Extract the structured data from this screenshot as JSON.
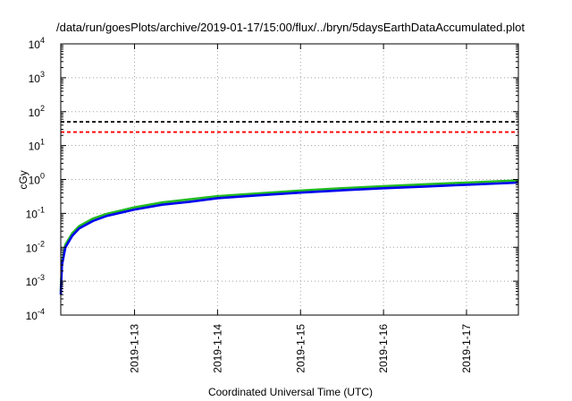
{
  "chart_data": {
    "type": "line",
    "title": "/data/run/goesPlots/archive/2019-01-17/15:00/flux/../bryn/5daysEarthDataAccumulated.plot",
    "xlabel": "Coordinated Universal Time (UTC)",
    "ylabel": "cGy",
    "y_scale": "log",
    "ylim": [
      0.0001,
      10000
    ],
    "xlim": [
      "2019-01-12T02:40",
      "2019-01-17T15:00"
    ],
    "grid": true,
    "x_ticks": [
      {
        "x": "2019-01-13T00:00",
        "label": "2019-1-13"
      },
      {
        "x": "2019-01-14T00:00",
        "label": "2019-1-14"
      },
      {
        "x": "2019-01-15T00:00",
        "label": "2019-1-15"
      },
      {
        "x": "2019-01-16T00:00",
        "label": "2019-1-16"
      },
      {
        "x": "2019-01-17T00:00",
        "label": "2019-1-17"
      }
    ],
    "y_ticks": [
      {
        "value": 0.0001,
        "base": "10",
        "exp": "-4"
      },
      {
        "value": 0.001,
        "base": "10",
        "exp": "-3"
      },
      {
        "value": 0.01,
        "base": "10",
        "exp": "-2"
      },
      {
        "value": 0.1,
        "base": "10",
        "exp": "-1"
      },
      {
        "value": 1,
        "base": "10",
        "exp": "0"
      },
      {
        "value": 10,
        "base": "10",
        "exp": "1"
      },
      {
        "value": 100,
        "base": "10",
        "exp": "2"
      },
      {
        "value": 1000,
        "base": "10",
        "exp": "3"
      },
      {
        "value": 10000,
        "base": "10",
        "exp": "4"
      }
    ],
    "reference_lines": [
      {
        "y": 50,
        "color": "#000000",
        "style": "dashed"
      },
      {
        "y": 25,
        "color": "#ff0000",
        "style": "dashed"
      }
    ],
    "series": [
      {
        "color": "#22bb22",
        "x": [
          "2019-01-12T02:40",
          "2019-01-12T03:00",
          "2019-01-12T04:00",
          "2019-01-12T06:00",
          "2019-01-12T08:00",
          "2019-01-12T12:00",
          "2019-01-12T16:00",
          "2019-01-13T00:00",
          "2019-01-13T08:00",
          "2019-01-13T16:00",
          "2019-01-14T00:00",
          "2019-01-14T12:00",
          "2019-01-15T00:00",
          "2019-01-15T12:00",
          "2019-01-16T00:00",
          "2019-01-16T12:00",
          "2019-01-17T00:00",
          "2019-01-17T15:00"
        ],
        "y": [
          0.0005,
          0.0035,
          0.012,
          0.026,
          0.042,
          0.07,
          0.097,
          0.15,
          0.21,
          0.26,
          0.32,
          0.39,
          0.47,
          0.55,
          0.63,
          0.72,
          0.81,
          0.94
        ]
      },
      {
        "color": "#0000ee",
        "x": [
          "2019-01-12T02:40",
          "2019-01-12T03:00",
          "2019-01-12T04:00",
          "2019-01-12T06:00",
          "2019-01-12T08:00",
          "2019-01-12T12:00",
          "2019-01-12T16:00",
          "2019-01-13T00:00",
          "2019-01-13T08:00",
          "2019-01-13T16:00",
          "2019-01-14T00:00",
          "2019-01-14T12:00",
          "2019-01-15T00:00",
          "2019-01-15T12:00",
          "2019-01-16T00:00",
          "2019-01-16T12:00",
          "2019-01-17T00:00",
          "2019-01-17T15:00"
        ],
        "y": [
          0.0004,
          0.003,
          0.01,
          0.022,
          0.036,
          0.06,
          0.084,
          0.13,
          0.18,
          0.22,
          0.28,
          0.34,
          0.41,
          0.48,
          0.55,
          0.62,
          0.7,
          0.81
        ]
      }
    ]
  }
}
